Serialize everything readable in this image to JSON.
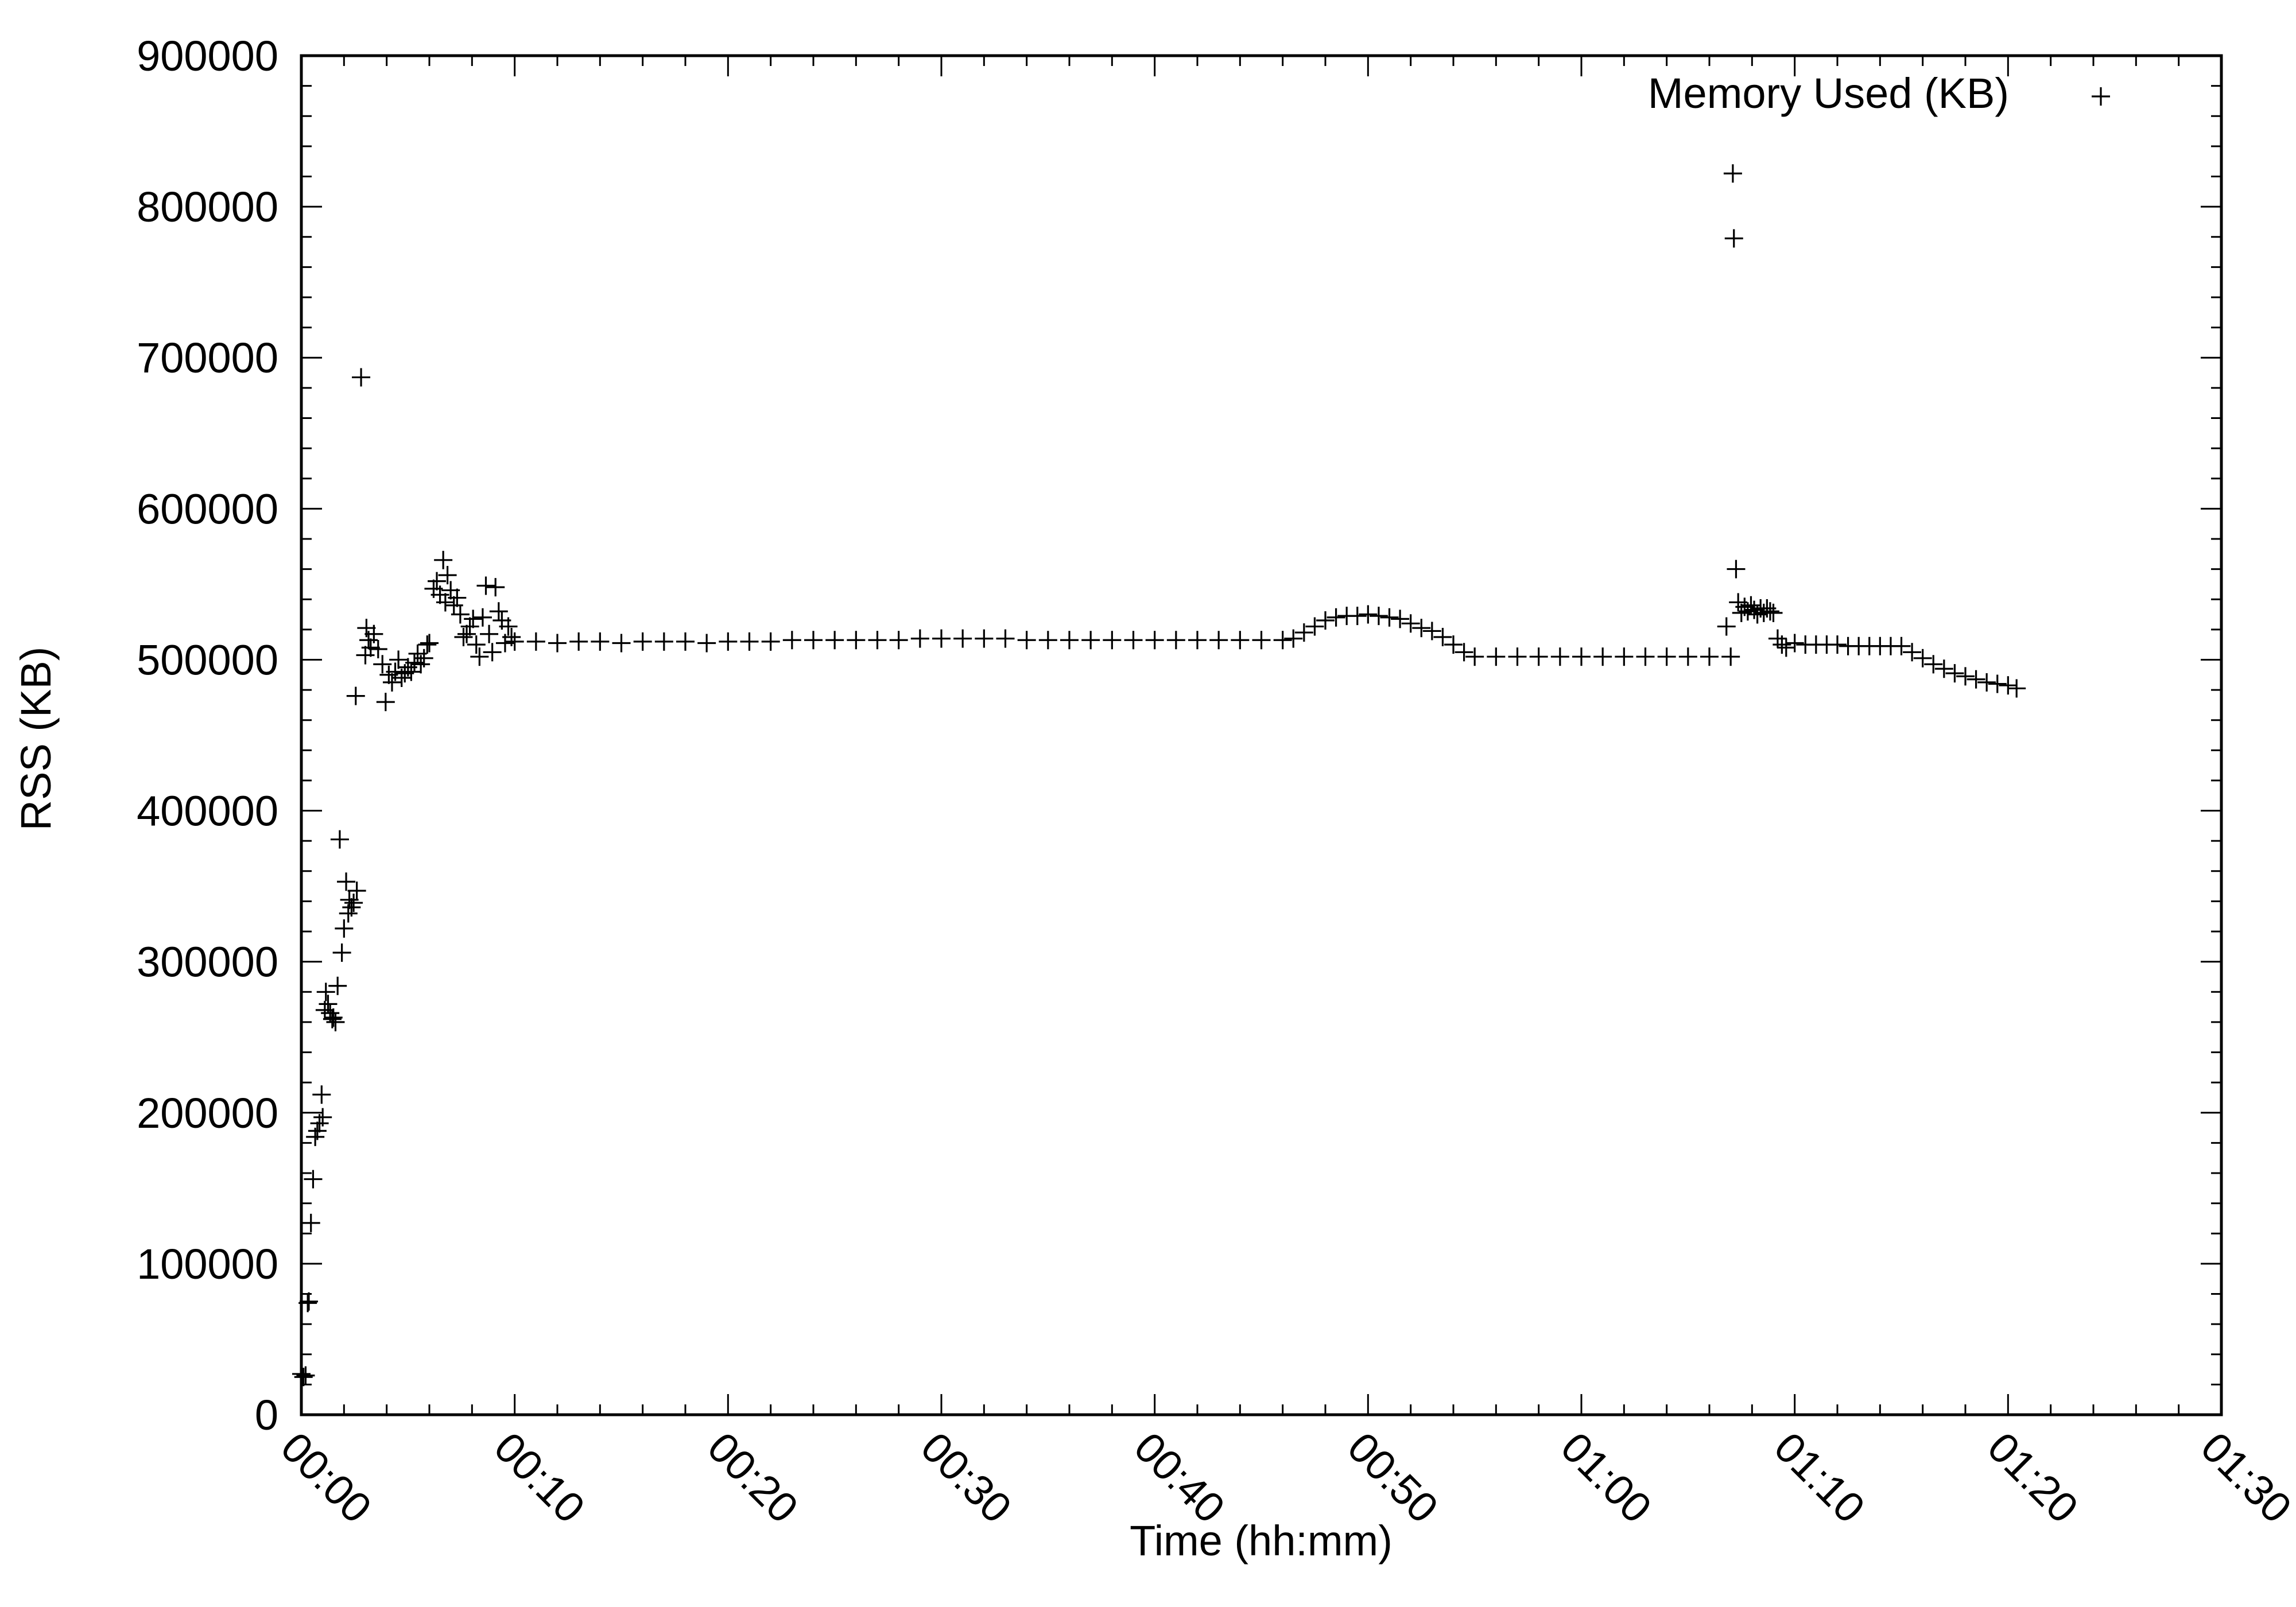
{
  "chart_data": {
    "type": "scatter",
    "title": "",
    "xlabel": "Time (hh:mm)",
    "ylabel": "RSS (KB)",
    "x_unit": "minutes",
    "xlim": [
      0,
      90
    ],
    "ylim": [
      0,
      900000
    ],
    "x_ticks": [
      {
        "value": 0,
        "label": "00:00"
      },
      {
        "value": 10,
        "label": "00:10"
      },
      {
        "value": 20,
        "label": "00:20"
      },
      {
        "value": 30,
        "label": "00:30"
      },
      {
        "value": 40,
        "label": "00:40"
      },
      {
        "value": 50,
        "label": "00:50"
      },
      {
        "value": 60,
        "label": "01:00"
      },
      {
        "value": 70,
        "label": "01:10"
      },
      {
        "value": 80,
        "label": "01:20"
      },
      {
        "value": 90,
        "label": "01:30"
      }
    ],
    "y_ticks": [
      {
        "value": 0,
        "label": "0"
      },
      {
        "value": 100000,
        "label": "100000"
      },
      {
        "value": 200000,
        "label": "200000"
      },
      {
        "value": 300000,
        "label": "300000"
      },
      {
        "value": 400000,
        "label": "400000"
      },
      {
        "value": 500000,
        "label": "500000"
      },
      {
        "value": 600000,
        "label": "600000"
      },
      {
        "value": 700000,
        "label": "700000"
      },
      {
        "value": 800000,
        "label": "800000"
      },
      {
        "value": 900000,
        "label": "900000"
      }
    ],
    "grid": false,
    "legend_position": "top-right",
    "marker": "plus",
    "series": [
      {
        "name": "Memory Used (KB)",
        "color": "#000000",
        "points": [
          [
            0.0,
            27000
          ],
          [
            0.1,
            25000
          ],
          [
            0.2,
            26000
          ],
          [
            0.3,
            74000
          ],
          [
            0.35,
            75000
          ],
          [
            0.45,
            127000
          ],
          [
            0.55,
            156000
          ],
          [
            0.65,
            184000
          ],
          [
            0.75,
            188000
          ],
          [
            0.85,
            193000
          ],
          [
            0.95,
            212000
          ],
          [
            1.0,
            197000
          ],
          [
            1.1,
            268000
          ],
          [
            1.15,
            280000
          ],
          [
            1.25,
            272000
          ],
          [
            1.35,
            266000
          ],
          [
            1.45,
            262000
          ],
          [
            1.5,
            263000
          ],
          [
            1.6,
            260000
          ],
          [
            1.7,
            284000
          ],
          [
            1.8,
            381000
          ],
          [
            1.9,
            306000
          ],
          [
            2.0,
            322000
          ],
          [
            2.1,
            353000
          ],
          [
            2.2,
            332000
          ],
          [
            2.25,
            341000
          ],
          [
            2.35,
            336000
          ],
          [
            2.45,
            339000
          ],
          [
            2.55,
            476000
          ],
          [
            2.6,
            347000
          ],
          [
            2.8,
            687000
          ],
          [
            3.0,
            503000
          ],
          [
            3.05,
            521000
          ],
          [
            3.15,
            513000
          ],
          [
            3.25,
            508000
          ],
          [
            3.4,
            517000
          ],
          [
            3.6,
            507000
          ],
          [
            3.8,
            497000
          ],
          [
            3.95,
            472000
          ],
          [
            4.1,
            490000
          ],
          [
            4.25,
            485000
          ],
          [
            4.4,
            492000
          ],
          [
            4.55,
            500000
          ],
          [
            4.7,
            488000
          ],
          [
            4.85,
            491000
          ],
          [
            5.0,
            495000
          ],
          [
            5.15,
            492000
          ],
          [
            5.3,
            498000
          ],
          [
            5.45,
            504000
          ],
          [
            5.6,
            497000
          ],
          [
            5.75,
            501000
          ],
          [
            5.9,
            510000
          ],
          [
            6.0,
            511000
          ],
          [
            6.2,
            547000
          ],
          [
            6.35,
            552000
          ],
          [
            6.5,
            543000
          ],
          [
            6.65,
            566000
          ],
          [
            6.75,
            538000
          ],
          [
            6.85,
            556000
          ],
          [
            7.0,
            546000
          ],
          [
            7.15,
            536000
          ],
          [
            7.3,
            541000
          ],
          [
            7.45,
            530000
          ],
          [
            7.6,
            515000
          ],
          [
            7.75,
            517000
          ],
          [
            7.9,
            522000
          ],
          [
            8.05,
            527000
          ],
          [
            8.2,
            510000
          ],
          [
            8.35,
            502000
          ],
          [
            8.5,
            528000
          ],
          [
            8.65,
            549000
          ],
          [
            8.8,
            517000
          ],
          [
            8.95,
            505000
          ],
          [
            9.1,
            548000
          ],
          [
            9.25,
            532000
          ],
          [
            9.4,
            526000
          ],
          [
            9.55,
            511000
          ],
          [
            9.7,
            522000
          ],
          [
            9.85,
            515000
          ],
          [
            10.0,
            512000
          ],
          [
            11.0,
            512000
          ],
          [
            12.0,
            511000
          ],
          [
            13.0,
            512000
          ],
          [
            14.0,
            512000
          ],
          [
            15.0,
            511000
          ],
          [
            16.0,
            512000
          ],
          [
            17.0,
            512000
          ],
          [
            18.0,
            512000
          ],
          [
            19.0,
            511000
          ],
          [
            20.0,
            512000
          ],
          [
            21.0,
            512000
          ],
          [
            22.0,
            512000
          ],
          [
            23.0,
            513000
          ],
          [
            24.0,
            513000
          ],
          [
            25.0,
            513000
          ],
          [
            26.0,
            513000
          ],
          [
            27.0,
            513000
          ],
          [
            28.0,
            513000
          ],
          [
            29.0,
            514000
          ],
          [
            30.0,
            514000
          ],
          [
            31.0,
            514000
          ],
          [
            32.0,
            514000
          ],
          [
            33.0,
            514000
          ],
          [
            34.0,
            513000
          ],
          [
            35.0,
            513000
          ],
          [
            36.0,
            513000
          ],
          [
            37.0,
            513000
          ],
          [
            38.0,
            513000
          ],
          [
            39.0,
            513000
          ],
          [
            40.0,
            513000
          ],
          [
            41.0,
            513000
          ],
          [
            42.0,
            513000
          ],
          [
            43.0,
            513000
          ],
          [
            44.0,
            513000
          ],
          [
            45.0,
            513000
          ],
          [
            46.0,
            513000
          ],
          [
            46.5,
            514000
          ],
          [
            47.0,
            518000
          ],
          [
            47.5,
            522000
          ],
          [
            48.0,
            526000
          ],
          [
            48.5,
            528000
          ],
          [
            49.0,
            529000
          ],
          [
            49.5,
            529000
          ],
          [
            50.0,
            530000
          ],
          [
            50.5,
            529000
          ],
          [
            51.0,
            528000
          ],
          [
            51.5,
            527000
          ],
          [
            52.0,
            524000
          ],
          [
            52.5,
            521000
          ],
          [
            53.0,
            519000
          ],
          [
            53.5,
            515000
          ],
          [
            54.0,
            510000
          ],
          [
            54.5,
            505000
          ],
          [
            55.0,
            502000
          ],
          [
            56.0,
            502000
          ],
          [
            57.0,
            502000
          ],
          [
            58.0,
            502000
          ],
          [
            59.0,
            502000
          ],
          [
            60.0,
            502000
          ],
          [
            61.0,
            502000
          ],
          [
            62.0,
            502000
          ],
          [
            63.0,
            502000
          ],
          [
            64.0,
            502000
          ],
          [
            65.0,
            502000
          ],
          [
            66.0,
            502000
          ],
          [
            67.0,
            502000
          ],
          [
            66.8,
            522000
          ],
          [
            67.1,
            822000
          ],
          [
            67.15,
            779000
          ],
          [
            67.25,
            560000
          ],
          [
            67.35,
            538000
          ],
          [
            67.5,
            531000
          ],
          [
            67.65,
            535000
          ],
          [
            67.8,
            532000
          ],
          [
            67.95,
            536000
          ],
          [
            68.1,
            533000
          ],
          [
            68.25,
            530000
          ],
          [
            68.4,
            534000
          ],
          [
            68.55,
            531000
          ],
          [
            68.7,
            534000
          ],
          [
            68.85,
            532000
          ],
          [
            69.0,
            531000
          ],
          [
            69.2,
            514000
          ],
          [
            69.4,
            510000
          ],
          [
            69.6,
            508000
          ],
          [
            70.0,
            511000
          ],
          [
            70.5,
            510000
          ],
          [
            71.0,
            510000
          ],
          [
            71.5,
            510000
          ],
          [
            72.0,
            510000
          ],
          [
            72.5,
            509000
          ],
          [
            73.0,
            509000
          ],
          [
            73.5,
            509000
          ],
          [
            74.0,
            509000
          ],
          [
            74.5,
            509000
          ],
          [
            75.0,
            509000
          ],
          [
            75.5,
            505000
          ],
          [
            76.0,
            501000
          ],
          [
            76.5,
            497000
          ],
          [
            77.0,
            494000
          ],
          [
            77.5,
            491000
          ],
          [
            78.0,
            489000
          ],
          [
            78.5,
            487000
          ],
          [
            79.0,
            485000
          ],
          [
            79.5,
            484000
          ],
          [
            80.0,
            483000
          ],
          [
            80.4,
            481000
          ]
        ]
      }
    ]
  }
}
